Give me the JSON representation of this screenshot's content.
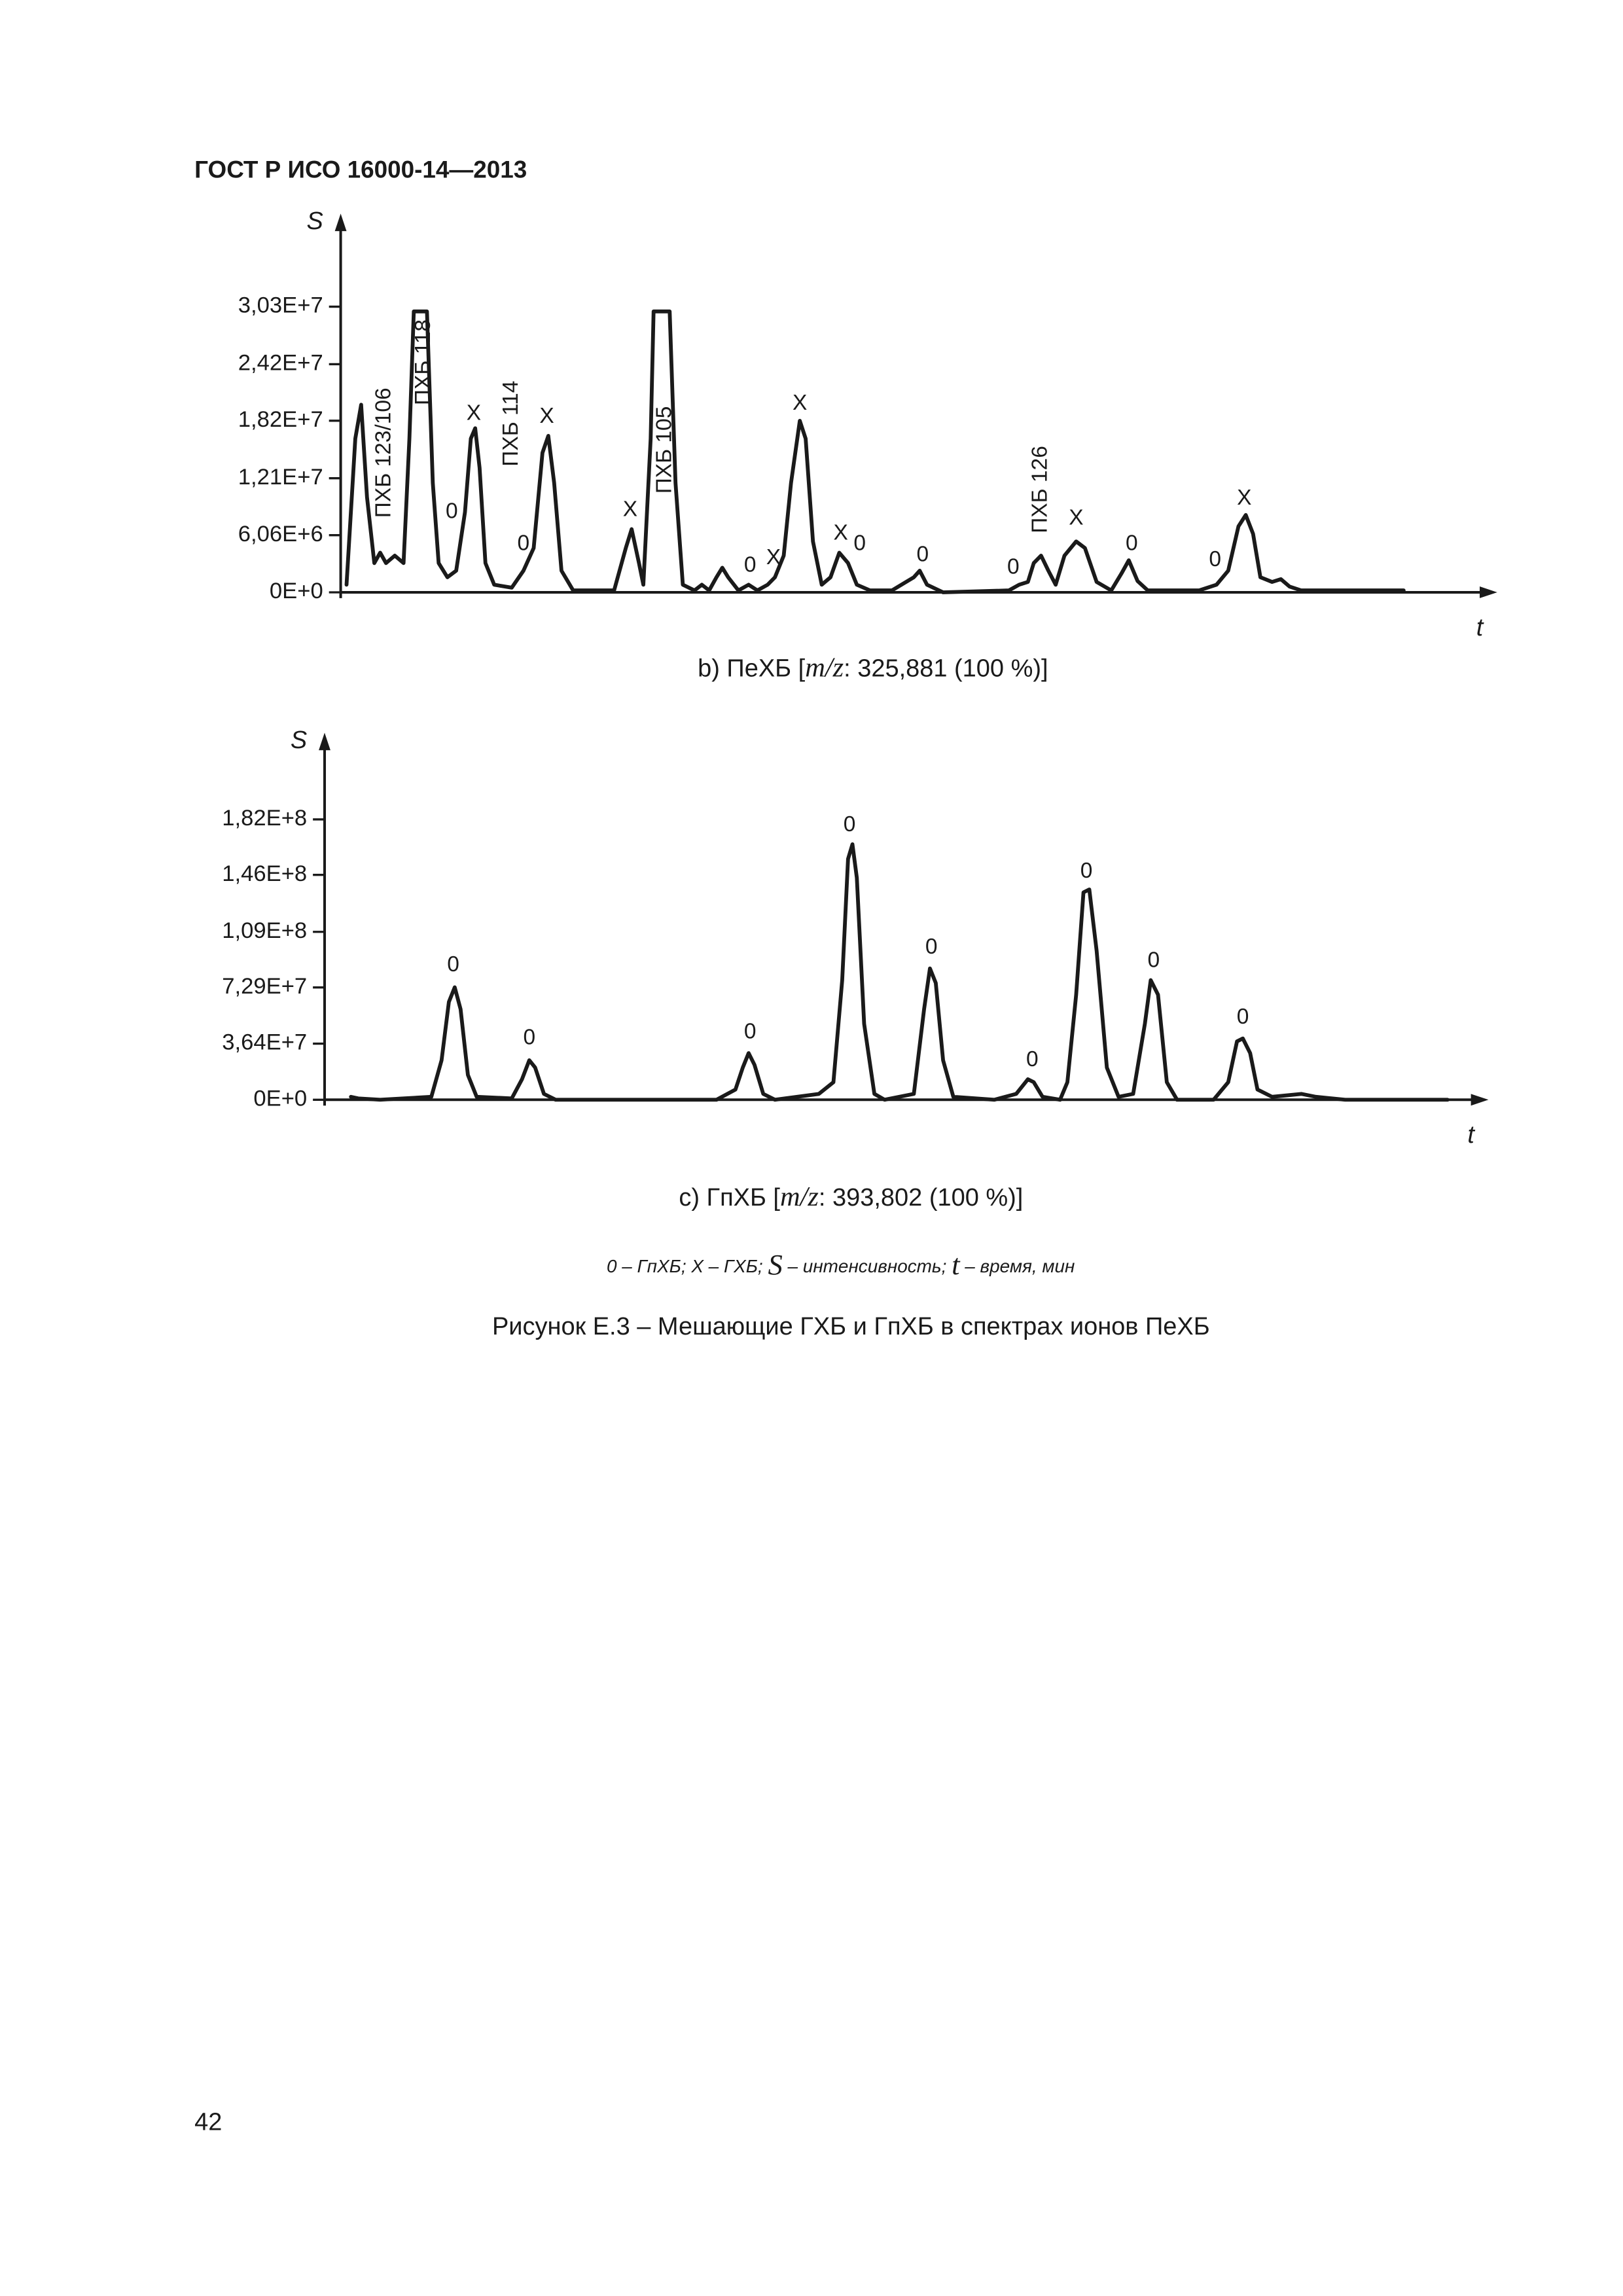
{
  "header": {
    "title": "ГОСТ Р ИСО 16000-14—2013"
  },
  "chart_data": [
    {
      "type": "line",
      "ylabel": "S",
      "xlabel": "t",
      "caption": {
        "prefix": "b)    ПеХБ [",
        "mz": "m/z",
        "suffix": ": 325,881 (100 %)]"
      },
      "xlim": [
        0,
        775
      ],
      "ylim": [
        0,
        38000000.0
      ],
      "yticks": [
        {
          "value": 0,
          "label": "0E+0"
        },
        {
          "value": 6060000,
          "label": "6,06E+6"
        },
        {
          "value": 12100000,
          "label": "1,21E+7"
        },
        {
          "value": 18200000,
          "label": "1,82E+7"
        },
        {
          "value": 24200000,
          "label": "2,42E+7"
        },
        {
          "value": 30300000,
          "label": "3,03E+7"
        }
      ],
      "color": "#1a1a1a",
      "x": [
        4,
        10,
        14,
        18,
        23,
        27,
        31,
        37,
        43,
        47,
        50,
        59,
        63,
        67,
        73,
        79,
        85,
        89,
        92,
        95,
        99,
        105,
        117,
        125,
        132,
        138,
        142,
        146,
        151,
        159,
        187,
        195,
        199,
        204,
        207,
        212,
        214,
        225,
        229,
        234,
        242,
        247,
        252,
        257,
        261,
        265,
        272,
        279,
        285,
        292,
        297,
        303,
        308,
        314,
        318,
        323,
        329,
        335,
        341,
        347,
        353,
        362,
        377,
        392,
        396,
        401,
        412,
        457,
        464,
        470,
        474,
        479,
        484,
        489,
        495,
        503,
        509,
        517,
        527,
        534,
        539,
        545,
        552,
        587,
        599,
        607,
        614,
        619,
        624,
        629,
        637,
        643,
        649,
        657,
        727
      ],
      "values": [
        800000.0,
        16300000.0,
        19900000.0,
        10100000.0,
        3100000.0,
        4200000.0,
        3100000.0,
        3900000.0,
        3100000.0,
        16300000.0,
        29800000.0,
        29800000.0,
        11600000.0,
        3100000.0,
        1600000.0,
        2300000.0,
        8500000.0,
        16300000.0,
        17400000.0,
        13200000.0,
        3100000.0,
        800000.0,
        500000.0,
        2300000.0,
        4700000.0,
        14800000.0,
        16600000.0,
        11600000.0,
        2300000.0,
        200000.0,
        200000.0,
        4700000.0,
        6700000.0,
        3100000.0,
        800000.0,
        16300000.0,
        29800000.0,
        29800000.0,
        11600000.0,
        800000.0,
        200000.0,
        800000.0,
        200000.0,
        1600000.0,
        2600000.0,
        1600000.0,
        200000.0,
        800000.0,
        200000.0,
        800000.0,
        1600000.0,
        3900000.0,
        11600000.0,
        18200000.0,
        16300000.0,
        5400000.0,
        800000.0,
        1600000.0,
        4200000.0,
        3100000.0,
        800000.0,
        200000.0,
        200000.0,
        1600000.0,
        2300000.0,
        800000.0,
        0,
        200000.0,
        800000.0,
        1100000.0,
        3100000.0,
        3900000.0,
        2300000.0,
        800000.0,
        3900000.0,
        5400000.0,
        4700000.0,
        1100000.0,
        200000.0,
        2000000.0,
        3400000.0,
        1200000.0,
        200000.0,
        200000.0,
        800000.0,
        2300000.0,
        7000000.0,
        8200000.0,
        6200000.0,
        1600000.0,
        1100000.0,
        1400000.0,
        600000.0,
        200000.0,
        200000.0
      ],
      "annotations": [
        {
          "text": "ПХБ 123/106",
          "x": 30,
          "y": 14800000.0
        },
        {
          "text": "ПХБ 118",
          "x": 57,
          "y": 24400000.0
        },
        {
          "text": "0",
          "x": 76,
          "y": 8500000.0
        },
        {
          "text": "X",
          "x": 91,
          "y": 18900000.0
        },
        {
          "text": "ПХБ 114",
          "x": 117,
          "y": 17900000.0
        },
        {
          "text": "X",
          "x": 141,
          "y": 18600000.0
        },
        {
          "text": "0",
          "x": 125,
          "y": 5100000.0
        },
        {
          "text": "X",
          "x": 198,
          "y": 8700000.0
        },
        {
          "text": "ПХБ 105",
          "x": 222,
          "y": 15100000.0
        },
        {
          "text": "X",
          "x": 314,
          "y": 20000000.0
        },
        {
          "text": "0",
          "x": 280,
          "y": 2800000.0
        },
        {
          "text": "X",
          "x": 296,
          "y": 3600000.0
        },
        {
          "text": "X",
          "x": 342,
          "y": 6200000.0
        },
        {
          "text": "0",
          "x": 355,
          "y": 5100000.0
        },
        {
          "text": "0",
          "x": 398,
          "y": 3900000.0
        },
        {
          "text": "0",
          "x": 460,
          "y": 2600000.0
        },
        {
          "text": "ПХБ 126",
          "x": 479,
          "y": 10900000.0
        },
        {
          "text": "X",
          "x": 503,
          "y": 7800000.0
        },
        {
          "text": "0",
          "x": 541,
          "y": 5100000.0
        },
        {
          "text": "0",
          "x": 598,
          "y": 3400000.0
        },
        {
          "text": "X",
          "x": 618,
          "y": 9900000.0
        }
      ]
    },
    {
      "type": "line",
      "ylabel": "S",
      "xlabel": "t",
      "caption": {
        "prefix": "c) ГпХБ [",
        "mz": "m/z",
        "suffix": ": 393,802 (100 %)]"
      },
      "xlim": [
        0,
        780
      ],
      "ylim": [
        0,
        225000000.0
      ],
      "yticks": [
        {
          "value": 0,
          "label": "0E+0"
        },
        {
          "value": 36400000,
          "label": "3,64E+7"
        },
        {
          "value": 72900000,
          "label": "7,29E+7"
        },
        {
          "value": 109000000,
          "label": "1,09E+8"
        },
        {
          "value": 146000000,
          "label": "1,46E+8"
        },
        {
          "value": 182000000,
          "label": "1,82E+8"
        }
      ],
      "color": "#1a1a1a",
      "x": [
        18,
        23,
        38,
        73,
        80,
        85,
        89,
        93,
        98,
        104,
        128,
        135,
        140,
        144,
        150,
        158,
        268,
        281,
        286,
        290,
        294,
        300,
        308,
        338,
        348,
        354,
        358,
        361,
        364,
        369,
        376,
        383,
        403,
        410,
        414,
        418,
        423,
        430,
        458,
        473,
        481,
        485,
        491,
        503,
        508,
        514,
        519,
        523,
        528,
        535,
        543,
        553,
        561,
        565,
        570,
        576,
        583,
        608,
        618,
        624,
        628,
        633,
        638,
        648,
        668,
        678,
        698,
        768
      ],
      "values": [
        1900000.0,
        900000.0,
        0,
        1900000.0,
        25600000.0,
        63500000.0,
        73000000.0,
        58800000.0,
        16100000.0,
        1900000.0,
        900000.0,
        13300000.0,
        25600000.0,
        20900000.0,
        3800000.0,
        0,
        0,
        6600000.0,
        20900000.0,
        30300000.0,
        22700000.0,
        3800000.0,
        0,
        3800000.0,
        11400000.0,
        77700000.0,
        156400000.0,
        165900000.0,
        144100000.0,
        49300000.0,
        3800000.0,
        0,
        3800000.0,
        58800000.0,
        85300000.0,
        75800000.0,
        25600000.0,
        1900000.0,
        0,
        3800000.0,
        13300000.0,
        11400000.0,
        1900000.0,
        0,
        11400000.0,
        68200000.0,
        134600000.0,
        136500000.0,
        96700000.0,
        20900000.0,
        1900000.0,
        3800000.0,
        49300000.0,
        77700000.0,
        68200000.0,
        11400000.0,
        0,
        0,
        11400000.0,
        37900000.0,
        39800000.0,
        30300000.0,
        6600000.0,
        1900000.0,
        3800000.0,
        1900000.0,
        0,
        0
      ],
      "annotations": [
        {
          "text": "0",
          "x": 88,
          "y": 87200000.0
        },
        {
          "text": "0",
          "x": 140,
          "y": 39800000.0
        },
        {
          "text": "0",
          "x": 291,
          "y": 43600000.0
        },
        {
          "text": "0",
          "x": 359,
          "y": 178200000.0
        },
        {
          "text": "0",
          "x": 415,
          "y": 98600000.0
        },
        {
          "text": "0",
          "x": 521,
          "y": 147900000.0
        },
        {
          "text": "0",
          "x": 484,
          "y": 25600000.0
        },
        {
          "text": "0",
          "x": 567,
          "y": 90000000.0
        },
        {
          "text": "0",
          "x": 628,
          "y": 53100000.0
        }
      ]
    }
  ],
  "note": {
    "a": "0 – ГпХБ; X – ГХБ; ",
    "s": "S",
    "b": " – интенсивность; ",
    "t": "t",
    "c": " – время, мин"
  },
  "figure_caption": "Рисунок E.3 – Мешающие ГХБ и ГпХБ в спектрах ионов ПеХБ",
  "page_number": "42"
}
